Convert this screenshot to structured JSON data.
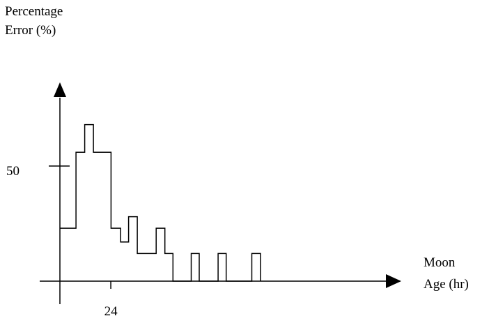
{
  "chart_data": {
    "type": "line",
    "step": true,
    "title": "",
    "ylabel": [
      "Percentage",
      "Error (%)"
    ],
    "xlabel": [
      "Moon",
      "Age (hr)"
    ],
    "x_tick_labels": [
      {
        "value": 24,
        "label": "24"
      }
    ],
    "y_tick_labels": [
      {
        "value": 50,
        "label": "50"
      }
    ],
    "xlim": [
      0,
      150
    ],
    "ylim": [
      0,
      100
    ],
    "grid": false,
    "legend": false,
    "series": [
      {
        "points": [
          [
            0,
            23
          ],
          [
            7.6,
            23
          ],
          [
            7.6,
            56
          ],
          [
            11.7,
            56
          ],
          [
            11.7,
            68
          ],
          [
            15.8,
            68
          ],
          [
            15.8,
            56
          ],
          [
            24.1,
            56
          ],
          [
            24.1,
            23
          ],
          [
            28.6,
            23
          ],
          [
            28.6,
            17
          ],
          [
            32.4,
            17
          ],
          [
            32.4,
            28
          ],
          [
            36.5,
            28
          ],
          [
            36.5,
            12
          ],
          [
            45.4,
            12
          ],
          [
            45.4,
            23
          ],
          [
            49.5,
            23
          ],
          [
            49.5,
            12
          ],
          [
            53.3,
            12
          ],
          [
            53.3,
            0
          ],
          [
            61.9,
            0
          ],
          [
            61.9,
            12
          ],
          [
            65.7,
            12
          ],
          [
            65.7,
            0
          ],
          [
            74.6,
            0
          ],
          [
            74.6,
            12
          ],
          [
            78.4,
            12
          ],
          [
            78.4,
            0
          ],
          [
            90.5,
            0
          ],
          [
            90.5,
            12
          ],
          [
            94.6,
            12
          ],
          [
            94.6,
            0
          ]
        ]
      }
    ]
  }
}
